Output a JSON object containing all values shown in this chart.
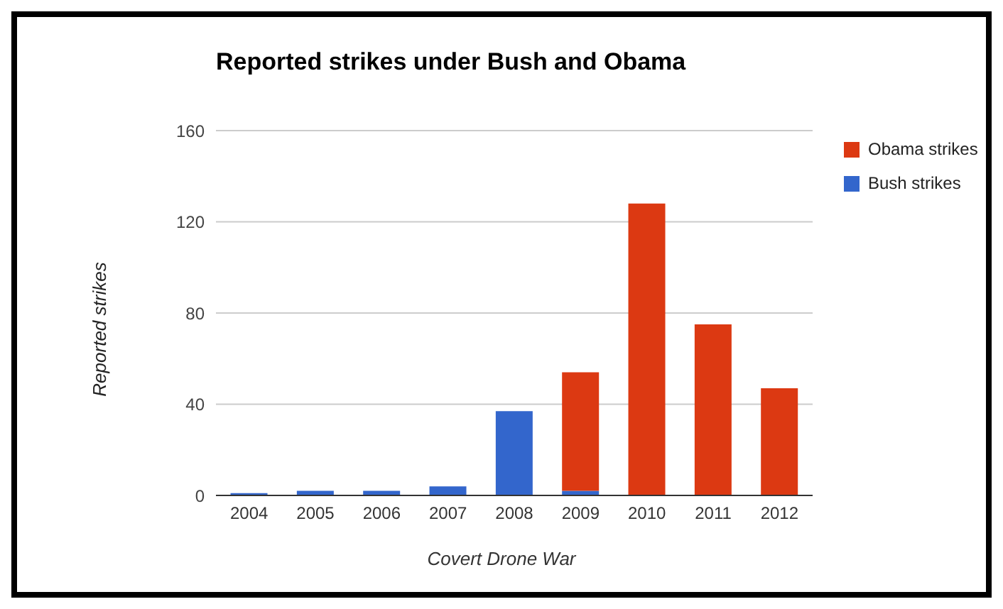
{
  "chart_data": {
    "type": "bar",
    "title": "Reported strikes under Bush and Obama",
    "ylabel": "Reported strikes",
    "categories": [
      "2004",
      "2005",
      "2006",
      "2007",
      "2008",
      "2009",
      "2010",
      "2011",
      "2012"
    ],
    "stacked": true,
    "series": [
      {
        "name": "Bush strikes",
        "color": "#3366cc",
        "values": [
          1,
          2,
          2,
          4,
          37,
          2,
          0,
          0,
          0
        ]
      },
      {
        "name": "Obama strikes",
        "color": "#dc3912",
        "values": [
          0,
          0,
          0,
          0,
          0,
          52,
          128,
          75,
          47
        ]
      }
    ],
    "ylim": [
      0,
      160
    ],
    "yticks": [
      0,
      40,
      80,
      120,
      160
    ],
    "grid": "y",
    "legend": "right",
    "annotations": [
      "Covert Drone War"
    ]
  }
}
